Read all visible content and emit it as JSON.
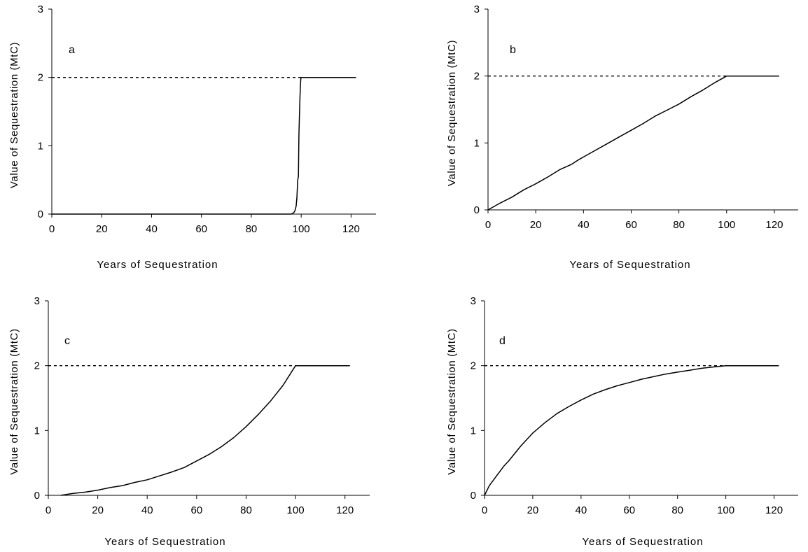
{
  "chart_data": [
    {
      "type": "line",
      "panel_label": "a",
      "xlabel": "Years of Sequestration",
      "ylabel": "Value of Sequestration (MtC)",
      "xlim": [
        0,
        130
      ],
      "ylim": [
        0,
        3
      ],
      "x_ticks": [
        0,
        20,
        40,
        60,
        80,
        100,
        120
      ],
      "y_ticks": [
        0,
        1,
        2,
        3
      ],
      "reference_line": {
        "y": 2,
        "style": "dashed",
        "x_range": [
          0,
          100
        ]
      },
      "series": [
        {
          "x": [
            0,
            96,
            97,
            97.5,
            98,
            98.3,
            98.6,
            98.9,
            99.1,
            99.3,
            99.5,
            99.7,
            99.9,
            100,
            122
          ],
          "y": [
            0,
            0,
            0.02,
            0.05,
            0.12,
            0.25,
            0.5,
            0.55,
            1.15,
            1.45,
            1.7,
            1.9,
            2.0,
            2.0,
            2.0
          ]
        }
      ]
    },
    {
      "type": "line",
      "panel_label": "b",
      "xlabel": "Years of Sequestration",
      "ylabel": "Value of Sequestration (MtC)",
      "xlim": [
        0,
        130
      ],
      "ylim": [
        0,
        3
      ],
      "x_ticks": [
        0,
        20,
        40,
        60,
        80,
        100,
        120
      ],
      "y_ticks": [
        0,
        1,
        2,
        3
      ],
      "reference_line": {
        "y": 2,
        "style": "dashed",
        "x_range": [
          0,
          100
        ]
      },
      "series": [
        {
          "x": [
            0,
            5,
            10,
            15,
            20,
            25,
            30,
            35,
            38,
            40,
            45,
            50,
            55,
            60,
            65,
            70,
            75,
            80,
            85,
            90,
            95,
            100,
            122
          ],
          "y": [
            0,
            0.1,
            0.19,
            0.3,
            0.39,
            0.49,
            0.6,
            0.68,
            0.75,
            0.79,
            0.89,
            0.99,
            1.09,
            1.19,
            1.29,
            1.4,
            1.49,
            1.58,
            1.69,
            1.79,
            1.9,
            2.0,
            2.0
          ]
        }
      ]
    },
    {
      "type": "line",
      "panel_label": "c",
      "xlabel": "Years of Sequestration",
      "ylabel": "Value of Sequestration (MtC)",
      "xlim": [
        0,
        130
      ],
      "ylim": [
        0,
        3
      ],
      "x_ticks": [
        0,
        20,
        40,
        60,
        80,
        100,
        120
      ],
      "y_ticks": [
        0,
        1,
        2,
        3
      ],
      "reference_line": {
        "y": 2,
        "style": "dashed",
        "x_range": [
          0,
          100
        ]
      },
      "series": [
        {
          "x": [
            5,
            10,
            15,
            20,
            25,
            30,
            35,
            40,
            45,
            50,
            55,
            60,
            65,
            70,
            75,
            80,
            85,
            90,
            95,
            98,
            100,
            122
          ],
          "y": [
            0,
            0.03,
            0.05,
            0.08,
            0.12,
            0.15,
            0.2,
            0.24,
            0.3,
            0.36,
            0.43,
            0.53,
            0.63,
            0.75,
            0.89,
            1.06,
            1.25,
            1.46,
            1.7,
            1.88,
            2.0,
            2.0
          ]
        }
      ]
    },
    {
      "type": "line",
      "panel_label": "d",
      "xlabel": "Years of Sequestration",
      "ylabel": "Value of Sequestration (MtC)",
      "xlim": [
        0,
        130
      ],
      "ylim": [
        0,
        3
      ],
      "x_ticks": [
        0,
        20,
        40,
        60,
        80,
        100,
        120
      ],
      "y_ticks": [
        0,
        1,
        2,
        3
      ],
      "reference_line": {
        "y": 2,
        "style": "dashed",
        "x_range": [
          0,
          100
        ]
      },
      "series": [
        {
          "x": [
            0,
            2,
            5,
            8,
            10,
            15,
            20,
            25,
            30,
            35,
            40,
            45,
            50,
            55,
            60,
            65,
            70,
            75,
            80,
            85,
            90,
            95,
            100,
            122
          ],
          "y": [
            0,
            0.15,
            0.3,
            0.45,
            0.53,
            0.76,
            0.96,
            1.12,
            1.26,
            1.37,
            1.47,
            1.56,
            1.63,
            1.69,
            1.74,
            1.79,
            1.83,
            1.87,
            1.9,
            1.93,
            1.96,
            1.98,
            2.0,
            2.0
          ]
        }
      ]
    }
  ]
}
